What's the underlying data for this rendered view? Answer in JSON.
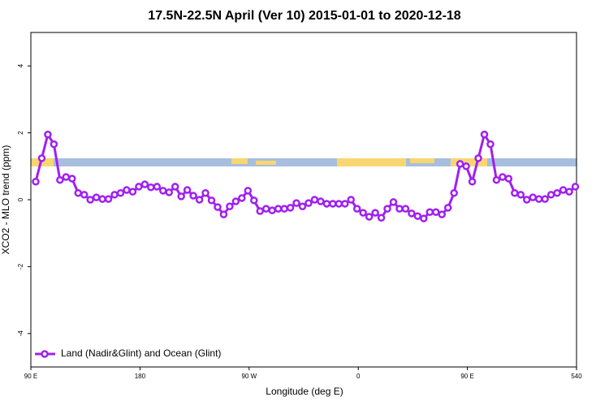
{
  "chart_data": {
    "type": "line",
    "title": "17.5N-22.5N April (Ver 10)   2015-01-01 to 2020-12-18",
    "x_label": "Longitude (deg E)",
    "y_label": "XCO2 - MLO trend (ppm)",
    "xlim": [
      90,
      540
    ],
    "ylim": [
      -5,
      5
    ],
    "xticks": [
      {
        "value": 90,
        "label": "90 E"
      },
      180,
      {
        "value": 270,
        "label": "90 W"
      },
      {
        "value": 360,
        "label": "0"
      },
      {
        "value": 450,
        "label": "90 E"
      },
      540
    ],
    "yticks": [
      -4,
      -2,
      0,
      2,
      4
    ],
    "legend": "bottom-left",
    "x": [
      94,
      99,
      104,
      109,
      114,
      119,
      124,
      129,
      134,
      139,
      144,
      149,
      154,
      159,
      164,
      169,
      174,
      179,
      184,
      189,
      194,
      199,
      204,
      209,
      214,
      219,
      224,
      229,
      234,
      239,
      244,
      249,
      254,
      259,
      264,
      269,
      274,
      279,
      284,
      289,
      294,
      299,
      304,
      309,
      314,
      319,
      324,
      329,
      334,
      339,
      344,
      349,
      354,
      359,
      364,
      369,
      374,
      379,
      384,
      389,
      394,
      399,
      404,
      409,
      414,
      419,
      424,
      429,
      434,
      439,
      444,
      449,
      454,
      459,
      464,
      469,
      474,
      479,
      484,
      489,
      494,
      499,
      504,
      509,
      514,
      519,
      524,
      529,
      534,
      539
    ],
    "series": [
      {
        "name": "Land (Nadir&Glint) and Ocean (Glint)",
        "color": "#a020f0",
        "values": [
          0.54,
          1.24,
          1.95,
          1.66,
          0.59,
          0.68,
          0.63,
          0.2,
          0.15,
          0,
          0.07,
          0.02,
          0.02,
          0.15,
          0.2,
          0.29,
          0.24,
          0.39,
          0.46,
          0.37,
          0.39,
          0.27,
          0.22,
          0.39,
          0.1,
          0.29,
          0.12,
          0,
          0.2,
          -0.02,
          -0.22,
          -0.44,
          -0.2,
          -0.05,
          0.05,
          0.27,
          -0.02,
          -0.34,
          -0.27,
          -0.32,
          -0.27,
          -0.27,
          -0.24,
          -0.1,
          -0.2,
          -0.1,
          0,
          -0.05,
          -0.12,
          -0.12,
          -0.12,
          -0.12,
          0,
          -0.27,
          -0.39,
          -0.51,
          -0.39,
          -0.54,
          -0.27,
          -0.07,
          -0.27,
          -0.27,
          -0.41,
          -0.49,
          -0.56,
          -0.37,
          -0.37,
          -0.44,
          -0.24,
          0.2,
          1.07,
          1.0,
          0.54,
          1.24,
          1.95,
          1.66,
          0.59,
          0.68,
          0.63,
          0.2,
          0.15,
          0,
          0.07,
          0.02,
          0.02,
          0.15,
          0.2,
          0.29,
          0.24,
          0.39
        ]
      }
    ]
  }
}
